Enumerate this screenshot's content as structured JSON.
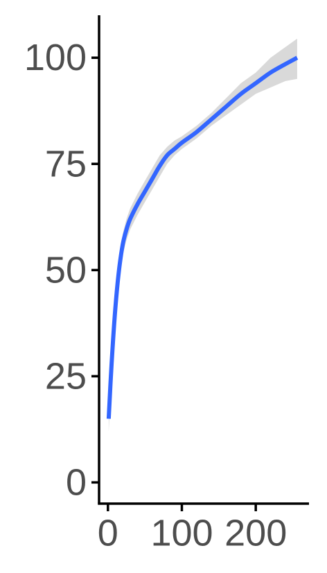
{
  "chart_data": {
    "type": "line",
    "title": "",
    "xlabel": "",
    "ylabel": "",
    "xlim": [
      -12,
      272
    ],
    "ylim": [
      -5,
      110
    ],
    "x_ticks": [
      0,
      100,
      200
    ],
    "y_ticks": [
      0,
      25,
      50,
      75,
      100
    ],
    "x_tick_labels": [
      "0",
      "100",
      "200"
    ],
    "y_tick_labels": [
      "0",
      "25",
      "50",
      "75",
      "100"
    ],
    "grid": false,
    "legend": "none",
    "series": [
      {
        "line_color": "#3366ff",
        "band_color": "#d9d9d9",
        "x": [
          1,
          5,
          10,
          15,
          20,
          25,
          30,
          40,
          50,
          60,
          70,
          80,
          90,
          100,
          120,
          140,
          160,
          180,
          200,
          220,
          240,
          256
        ],
        "y": [
          15,
          28,
          41,
          50,
          56,
          59.5,
          62,
          65.5,
          68.5,
          71.5,
          74.5,
          77,
          78.5,
          80,
          82.5,
          85.5,
          88.5,
          91.5,
          94,
          96.5,
          98.5,
          100
        ],
        "lower": [
          12,
          25.5,
          38.5,
          47.5,
          53.5,
          57,
          59.5,
          63,
          66,
          69,
          72,
          75,
          77,
          78.5,
          81,
          84,
          86.5,
          89,
          91.5,
          93,
          94.5,
          95
        ],
        "upper": [
          18,
          30.5,
          43.5,
          52.5,
          58.5,
          62,
          64.5,
          68,
          71,
          74,
          77,
          79,
          80.5,
          81.5,
          84,
          87,
          90.5,
          94,
          96.5,
          100,
          102.5,
          104.5
        ]
      }
    ]
  }
}
